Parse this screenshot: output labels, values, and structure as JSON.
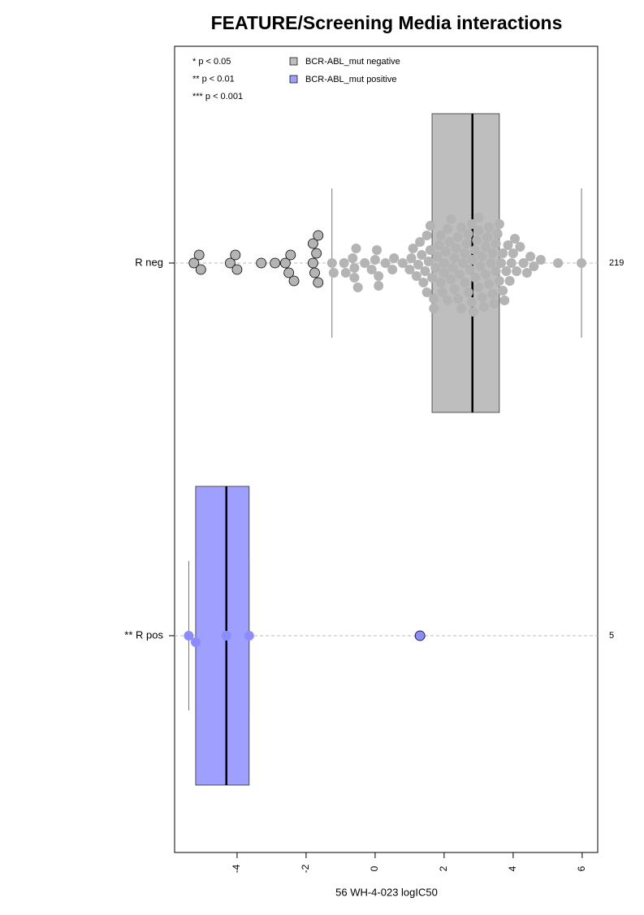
{
  "chart_data": {
    "type": "boxplot",
    "title": "FEATURE/Screening Media interactions",
    "x_label": "56 WH-4-023 logIC50",
    "xlim": [
      -5.81,
      6.45
    ],
    "xticks": [
      -4,
      -2,
      0,
      2,
      4,
      6
    ],
    "notes": [
      "* p < 0.05",
      "** p < 0.01",
      "*** p < 0.001"
    ],
    "series": [
      {
        "name": "BCR-ABL_mut negative",
        "label": "R neg",
        "color": "#bebebe",
        "point_color": "#b4b4b4",
        "count": 219,
        "whislo": -1.25,
        "q1": 1.65,
        "median": 2.82,
        "q3": 3.6,
        "whishi": 5.98,
        "points": [
          -5.25,
          -5.05,
          -5.1,
          -4.2,
          -4.0,
          -4.05,
          -3.3,
          -2.9,
          -2.6,
          -2.5,
          -2.45,
          -2.35,
          -1.8,
          -1.75,
          -1.7,
          -1.65,
          -1.8,
          -1.65,
          -1.25,
          -1.2,
          -0.9,
          -0.85,
          -0.65,
          -0.6,
          -0.6,
          -0.55,
          -0.5,
          -0.3,
          -0.1,
          0.0,
          0.05,
          0.1,
          0.1,
          0.3,
          0.5,
          0.55,
          0.8,
          1.0,
          1.05,
          1.1,
          1.2,
          1.25,
          1.3,
          1.35,
          1.4,
          1.45,
          1.5,
          1.5,
          1.55,
          1.6,
          1.6,
          1.65,
          1.7,
          1.7,
          1.75,
          1.8,
          1.85,
          1.9,
          1.9,
          1.95,
          2.0,
          2.0,
          2.05,
          2.1,
          2.1,
          2.15,
          2.2,
          2.2,
          2.25,
          2.3,
          2.3,
          2.35,
          2.4,
          2.4,
          2.45,
          2.5,
          2.5,
          2.55,
          2.6,
          2.6,
          2.65,
          2.7,
          2.7,
          2.75,
          2.8,
          2.8,
          2.82,
          2.85,
          2.9,
          2.9,
          2.95,
          3.0,
          3.0,
          3.0,
          3.05,
          3.1,
          3.1,
          3.15,
          3.2,
          3.2,
          3.25,
          3.3,
          3.3,
          3.35,
          3.4,
          3.4,
          3.45,
          3.5,
          3.5,
          3.55,
          3.6,
          3.6,
          3.65,
          3.7,
          3.7,
          3.75,
          3.8,
          3.85,
          3.9,
          3.95,
          4.0,
          4.05,
          4.1,
          4.2,
          4.3,
          4.4,
          4.5,
          4.6,
          4.8,
          5.3,
          5.98
        ]
      },
      {
        "name": "BCR-ABL_mut positive",
        "label": "** R pos",
        "color": "#9f9fff",
        "point_color": "#8c8cff",
        "count": 5,
        "whislo": -5.4,
        "q1": -5.2,
        "median": -4.31,
        "q3": -3.65,
        "whishi": -3.65,
        "points": [
          -5.4,
          -5.2,
          -4.31,
          -3.65,
          1.3
        ]
      }
    ]
  }
}
